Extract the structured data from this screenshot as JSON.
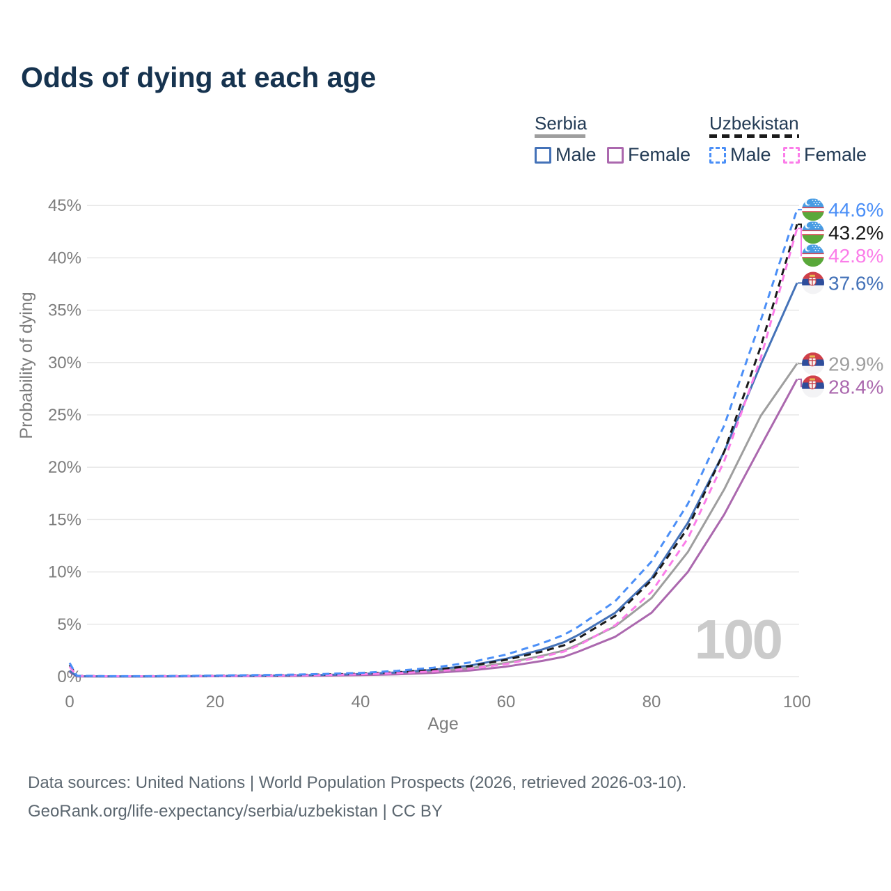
{
  "title": "Odds of dying at each age",
  "legend": {
    "groups": [
      {
        "name": "Serbia",
        "line_style": "solid",
        "line_color": "#9e9e9e",
        "items": [
          {
            "label": "Male",
            "color": "#4472b8",
            "style": "solid"
          },
          {
            "label": "Female",
            "color": "#ab68ae",
            "style": "solid"
          }
        ]
      },
      {
        "name": "Uzbekistan",
        "line_style": "dashed",
        "line_color": "#1a1a1a",
        "items": [
          {
            "label": "Male",
            "color": "#4b8ff7",
            "style": "dashed"
          },
          {
            "label": "Female",
            "color": "#fb7de9",
            "style": "dashed"
          }
        ]
      }
    ]
  },
  "footer": {
    "line1": "Data sources: United Nations | World Population Prospects (2026, retrieved 2026-03-10).",
    "line2": "GeoRank.org/life-expectancy/serbia/uzbekistan | CC BY"
  },
  "chart_data": {
    "type": "line",
    "title": "Odds of dying at each age",
    "xlabel": "Age",
    "ylabel": "Probability of dying",
    "grid": "horizontal",
    "legend_position": "top-right",
    "xlim": [
      0,
      100
    ],
    "ylim_percent": [
      0,
      47
    ],
    "highlighted_age": "100",
    "x_ticks": [
      {
        "label": "0",
        "value": 0
      },
      {
        "label": "20",
        "value": 20
      },
      {
        "label": "40",
        "value": 40
      },
      {
        "label": "60",
        "value": 60
      },
      {
        "label": "80",
        "value": 80
      },
      {
        "label": "100",
        "value": 100
      }
    ],
    "y_ticks": [
      {
        "label": "0%",
        "value": 0
      },
      {
        "label": "5%",
        "value": 5
      },
      {
        "label": "10%",
        "value": 10
      },
      {
        "label": "15%",
        "value": 15
      },
      {
        "label": "20%",
        "value": 20
      },
      {
        "label": "25%",
        "value": 25
      },
      {
        "label": "30%",
        "value": 30
      },
      {
        "label": "35%",
        "value": 35
      },
      {
        "label": "40%",
        "value": 40
      },
      {
        "label": "45%",
        "value": 45
      }
    ],
    "ages": [
      0,
      1,
      5,
      10,
      15,
      20,
      25,
      30,
      35,
      40,
      45,
      50,
      55,
      60,
      65,
      68,
      70,
      75,
      80,
      85,
      90,
      95,
      100
    ],
    "series": [
      {
        "name": "Uzbekistan Male",
        "country": "Uzbekistan",
        "sex": "Male",
        "flag": "uz",
        "color": "#4b8ff7",
        "dashed": true,
        "z": 6,
        "end_label": "44.6%",
        "label_color": "#4b8ff7",
        "values": [
          1.3,
          0.08,
          0.04,
          0.04,
          0.06,
          0.1,
          0.14,
          0.18,
          0.25,
          0.35,
          0.55,
          0.85,
          1.35,
          2.1,
          3.2,
          4.0,
          4.8,
          7.2,
          11.0,
          16.5,
          24.0,
          34.0,
          44.6
        ]
      },
      {
        "name": "Uzbekistan Both sexes",
        "country": "Uzbekistan",
        "sex": "Both",
        "flag": "uz",
        "color": "#1a1a1a",
        "dashed": true,
        "z": 4,
        "end_label": "43.2%",
        "label_color": "#1a1a1a",
        "values": [
          1.1,
          0.07,
          0.03,
          0.03,
          0.05,
          0.08,
          0.11,
          0.14,
          0.2,
          0.28,
          0.42,
          0.65,
          1.0,
          1.6,
          2.4,
          3.0,
          3.7,
          5.8,
          9.2,
          14.2,
          21.5,
          31.5,
          43.2
        ]
      },
      {
        "name": "Uzbekistan Female",
        "country": "Uzbekistan",
        "sex": "Female",
        "flag": "uz",
        "color": "#fb7de9",
        "dashed": true,
        "z": 5,
        "end_label": "42.8%",
        "label_color": "#fb7de9",
        "values": [
          0.95,
          0.06,
          0.03,
          0.03,
          0.04,
          0.06,
          0.08,
          0.11,
          0.15,
          0.22,
          0.33,
          0.5,
          0.75,
          1.2,
          1.9,
          2.4,
          3.0,
          4.9,
          8.1,
          13.2,
          20.6,
          30.4,
          42.8
        ]
      },
      {
        "name": "Serbia Male",
        "country": "Serbia",
        "sex": "Male",
        "flag": "rs",
        "color": "#4472b8",
        "dashed": false,
        "z": 3,
        "end_label": "37.6%",
        "label_color": "#4472b8",
        "values": [
          0.55,
          0.03,
          0.01,
          0.01,
          0.03,
          0.06,
          0.08,
          0.11,
          0.16,
          0.25,
          0.4,
          0.65,
          1.05,
          1.7,
          2.6,
          3.3,
          4.0,
          6.1,
          9.4,
          14.7,
          21.5,
          29.8,
          37.6
        ]
      },
      {
        "name": "Serbia Both sexes",
        "country": "Serbia",
        "sex": "Both",
        "flag": "rs",
        "color": "#9e9e9e",
        "dashed": false,
        "z": 1,
        "end_label": "29.9%",
        "label_color": "#9e9e9e",
        "values": [
          0.5,
          0.03,
          0.01,
          0.01,
          0.03,
          0.05,
          0.06,
          0.08,
          0.12,
          0.19,
          0.3,
          0.5,
          0.8,
          1.3,
          2.0,
          2.5,
          3.1,
          4.8,
          7.5,
          11.9,
          17.9,
          24.9,
          29.9
        ]
      },
      {
        "name": "Serbia Female",
        "country": "Serbia",
        "sex": "Female",
        "flag": "rs",
        "color": "#ab68ae",
        "dashed": false,
        "z": 2,
        "end_label": "28.4%",
        "label_color": "#ab68ae",
        "values": [
          0.45,
          0.02,
          0.01,
          0.01,
          0.02,
          0.03,
          0.04,
          0.06,
          0.09,
          0.14,
          0.22,
          0.36,
          0.58,
          0.95,
          1.5,
          1.9,
          2.4,
          3.8,
          6.1,
          10.0,
          15.5,
          22.0,
          28.4
        ]
      }
    ]
  }
}
